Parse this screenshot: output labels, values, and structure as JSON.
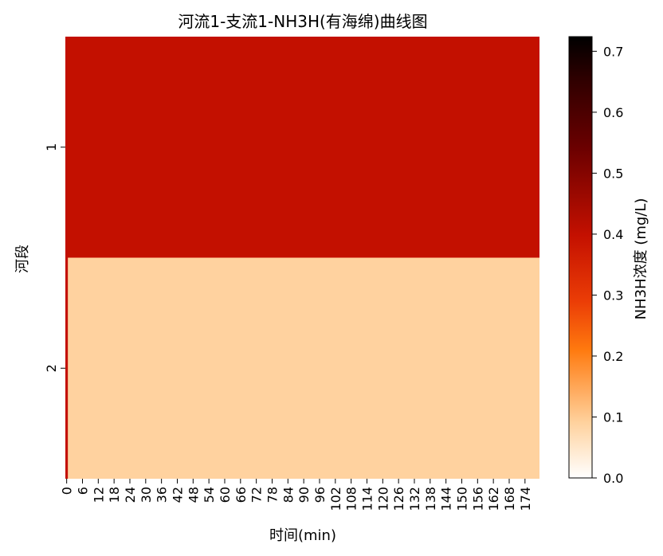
{
  "chart_data": {
    "type": "heatmap",
    "title": "河流1-支流1-NH3H(有海绵)曲线图",
    "xlabel": "时间(min)",
    "ylabel": "河段",
    "colorbar_label": "NH3H浓度 (mg/L)",
    "y_categories": [
      "1",
      "2"
    ],
    "x_ticks": [
      0,
      6,
      12,
      18,
      24,
      30,
      36,
      42,
      48,
      54,
      60,
      66,
      72,
      78,
      84,
      90,
      96,
      102,
      108,
      114,
      120,
      126,
      132,
      138,
      144,
      150,
      156,
      162,
      168,
      174
    ],
    "x_range": [
      0,
      180
    ],
    "colorbar_range": [
      0,
      0.724
    ],
    "colorbar_ticks": [
      "0.0",
      "0.1",
      "0.2",
      "0.3",
      "0.4",
      "0.5",
      "0.6",
      "0.7"
    ],
    "colormap": "gist_heat_r",
    "rows": [
      {
        "segment": "1",
        "values_by_time": [
          {
            "t_start": 0,
            "t_end": 180,
            "value": 0.4
          }
        ]
      },
      {
        "segment": "2",
        "values_by_time": [
          {
            "t_start": 0,
            "t_end": 1,
            "value": 0.4
          },
          {
            "t_start": 1,
            "t_end": 180,
            "value": 0.09
          }
        ]
      }
    ]
  }
}
